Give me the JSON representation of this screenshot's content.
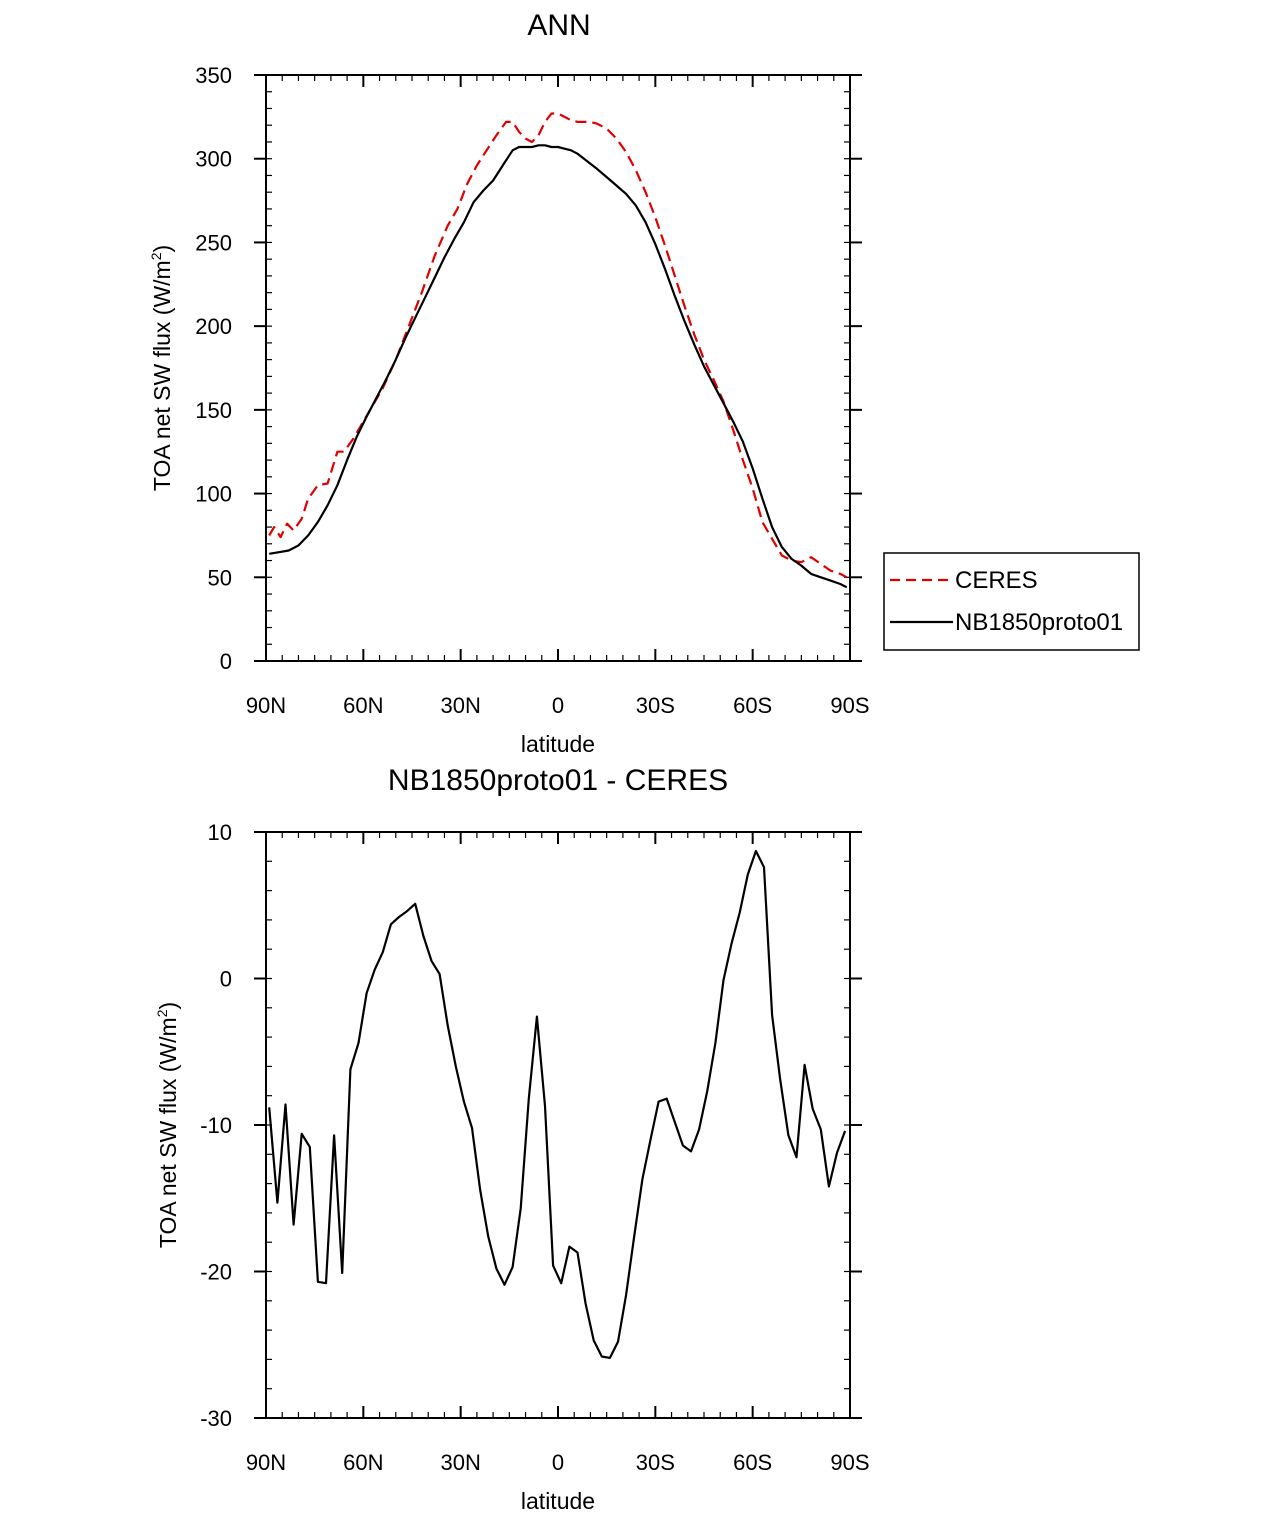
{
  "chart_data": [
    {
      "type": "line",
      "title": "ANN",
      "xlabel": "latitude",
      "ylabel": "TOA net SW flux (W/m",
      "ylabel_sup": "2",
      "ylabel_close": ")",
      "xlim": [
        90,
        -90
      ],
      "ylim": [
        0,
        350
      ],
      "x_ticks": [
        90,
        60,
        30,
        0,
        -30,
        -60,
        -90
      ],
      "x_tick_labels": [
        "90N",
        "60N",
        "30N",
        "0",
        "30S",
        "60S",
        "90S"
      ],
      "y_ticks": [
        0,
        50,
        100,
        150,
        200,
        250,
        300,
        350
      ],
      "y_tick_labels": [
        "0",
        "50",
        "100",
        "150",
        "200",
        "250",
        "300",
        "350"
      ],
      "legend": {
        "position": "right",
        "entries": [
          "CERES",
          "NB1850proto01"
        ]
      },
      "series": [
        {
          "name": "CERES",
          "color": "#e00000",
          "dash": "dashed",
          "x": [
            89,
            87.5,
            85.5,
            83.5,
            81.5,
            79,
            77,
            74,
            71,
            68,
            66,
            63,
            60,
            57,
            54,
            50,
            46,
            42,
            38,
            34,
            31,
            28,
            25,
            22,
            19,
            16,
            14,
            12,
            10,
            8,
            6,
            4,
            2,
            0,
            -2,
            -4,
            -6,
            -8,
            -10,
            -12,
            -15,
            -18,
            -21,
            -24,
            -27,
            -30,
            -33,
            -36,
            -39,
            -42,
            -45,
            -48,
            -51,
            -54,
            -57,
            -60,
            -63,
            -66,
            -69,
            -72,
            -75,
            -78,
            -81,
            -84,
            -87,
            -89
          ],
          "y": [
            75,
            80,
            74,
            82,
            78,
            85,
            97,
            105,
            106,
            125,
            125,
            133,
            143,
            153,
            163,
            180,
            200,
            220,
            242,
            260,
            270,
            285,
            296,
            305,
            314,
            322,
            322,
            316,
            312,
            310,
            314,
            322,
            327,
            327,
            325,
            323,
            322,
            322,
            322,
            321,
            318,
            312,
            304,
            293,
            280,
            265,
            248,
            230,
            212,
            195,
            180,
            168,
            155,
            138,
            120,
            103,
            83,
            73,
            63,
            60,
            59,
            62,
            58,
            54,
            52,
            50
          ]
        },
        {
          "name": "NB1850proto01",
          "color": "#000000",
          "dash": "solid",
          "x": [
            89,
            86,
            83,
            80,
            77,
            74,
            71,
            68,
            65,
            62,
            59,
            56,
            53,
            50,
            47,
            44,
            41,
            38,
            35,
            32,
            29,
            26,
            23,
            20,
            17,
            14,
            12,
            10,
            8,
            6,
            4,
            2,
            0,
            -2,
            -4,
            -6,
            -8,
            -10,
            -12,
            -15,
            -18,
            -21,
            -24,
            -27,
            -30,
            -33,
            -36,
            -39,
            -42,
            -45,
            -48,
            -51,
            -54,
            -57,
            -60,
            -63,
            -66,
            -69,
            -72,
            -75,
            -78,
            -81,
            -84,
            -87,
            -89
          ],
          "y": [
            64,
            65,
            66,
            69,
            75,
            83,
            93,
            105,
            120,
            134,
            146,
            157,
            168,
            180,
            193,
            205,
            217,
            229,
            241,
            252,
            262,
            274,
            281,
            287,
            296,
            305,
            307,
            307,
            307,
            308,
            308,
            307,
            307,
            306,
            305,
            303,
            300,
            297,
            294,
            289,
            284,
            279,
            272,
            262,
            249,
            234,
            218,
            203,
            189,
            176,
            165,
            154,
            143,
            131,
            115,
            97,
            80,
            68,
            61,
            57,
            52,
            50,
            48,
            46,
            44
          ]
        }
      ]
    },
    {
      "type": "line",
      "title": "NB1850proto01 - CERES",
      "xlabel": "latitude",
      "ylabel": "TOA net SW flux (W/m",
      "ylabel_sup": "2",
      "ylabel_close": ")",
      "xlim": [
        90,
        -90
      ],
      "ylim": [
        -30,
        10
      ],
      "x_ticks": [
        90,
        60,
        30,
        0,
        -30,
        -60,
        -90
      ],
      "x_tick_labels": [
        "90N",
        "60N",
        "30N",
        "0",
        "30S",
        "60S",
        "90S"
      ],
      "y_ticks": [
        -30,
        -20,
        -10,
        0,
        10
      ],
      "y_tick_labels": [
        "-30",
        "-20",
        "-10",
        "0",
        "10"
      ],
      "series": [
        {
          "name": "NB1850proto01 - CERES",
          "color": "#000000",
          "dash": "solid",
          "x": [
            89,
            86.5,
            84,
            81.5,
            79,
            76.5,
            74,
            71.5,
            69,
            66.5,
            64,
            61.5,
            59,
            56.5,
            54,
            51.5,
            49,
            46.5,
            44,
            41.5,
            39,
            36.5,
            34,
            31.5,
            29,
            26.5,
            24,
            21.5,
            19,
            16.5,
            14,
            11.5,
            9,
            6.5,
            4,
            1.5,
            -1,
            -3.5,
            -6,
            -8.5,
            -11,
            -13.5,
            -16,
            -18.5,
            -21,
            -23.5,
            -26,
            -28.5,
            -31,
            -33.5,
            -36,
            -38.5,
            -41,
            -43.5,
            -46,
            -48.5,
            -51,
            -53.5,
            -56,
            -58.5,
            -61,
            -63.5,
            -66,
            -68.5,
            -71,
            -73.5,
            -76,
            -78.5,
            -81,
            -83.5,
            -86,
            -88.5
          ],
          "y": [
            -8.8,
            -15.3,
            -8.6,
            -16.8,
            -10.6,
            -11.5,
            -20.7,
            -20.8,
            -10.7,
            -20.1,
            -6.2,
            -4.4,
            -1.0,
            0.6,
            1.8,
            3.7,
            4.2,
            4.6,
            5.1,
            2.9,
            1.2,
            0.3,
            -3.2,
            -6.0,
            -8.4,
            -10.2,
            -14.4,
            -17.6,
            -19.8,
            -20.9,
            -19.7,
            -15.7,
            -8.2,
            -2.6,
            -8.7,
            -19.6,
            -20.8,
            -18.3,
            -18.7,
            -22.2,
            -24.7,
            -25.8,
            -25.9,
            -24.8,
            -21.6,
            -17.6,
            -13.7,
            -11.0,
            -8.4,
            -8.2,
            -9.8,
            -11.4,
            -11.8,
            -10.3,
            -7.7,
            -4.4,
            -0.1,
            2.4,
            4.5,
            7.1,
            8.7,
            7.6,
            -2.5,
            -6.9,
            -10.7,
            -12.2,
            -5.9,
            -8.9,
            -10.3,
            -14.2,
            -11.9,
            -10.4
          ]
        }
      ]
    }
  ]
}
